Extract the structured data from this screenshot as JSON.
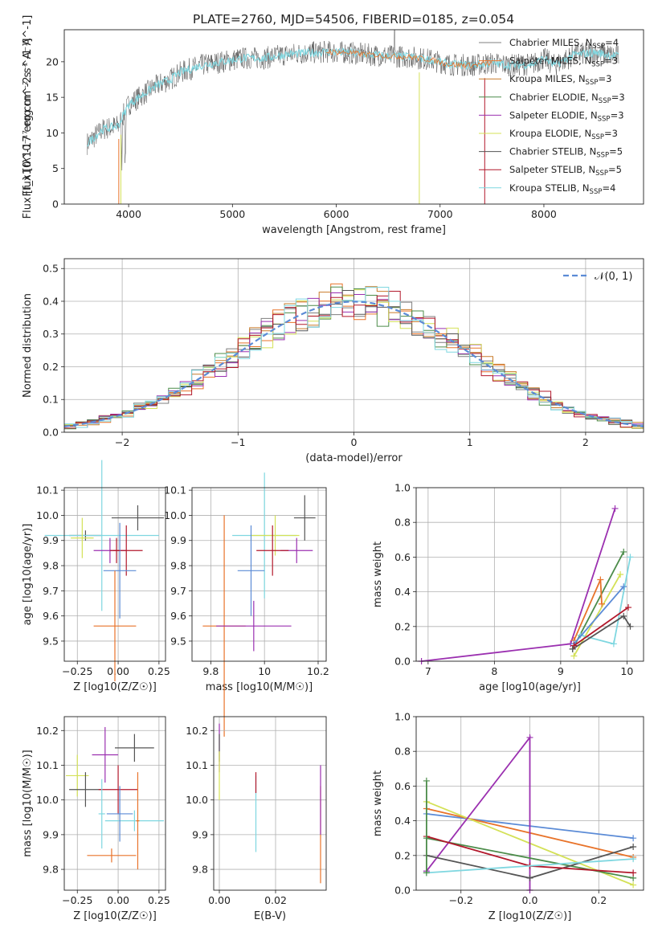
{
  "title": "PLATE=2760, MJD=54506, FIBERID=0185, z=0.054",
  "colors": {
    "c_miles": "#7f7f7f",
    "s_miles": "#e8732a",
    "k_miles": "#c97b2a",
    "c_elodie": "#4c8c4a",
    "s_elodie": "#9b30b0",
    "k_elodie": "#d4e157",
    "c_stelib": "#555555",
    "s_stelib": "#b2182b",
    "k_stelib": "#7fd7e0",
    "gauss": "#5b8bd6"
  },
  "legend_spectrum": [
    {
      "key": "c_miles",
      "text": "Chabrier MILES, N",
      "sub": "SSP",
      "tail": "=4"
    },
    {
      "key": "s_miles",
      "text": "Salpeter MILES, N",
      "sub": "SSP",
      "tail": "=3"
    },
    {
      "key": "k_miles",
      "text": "Kroupa MILES, N",
      "sub": "SSP",
      "tail": "=3"
    },
    {
      "key": "c_elodie",
      "text": "Chabrier ELODIE, N",
      "sub": "SSP",
      "tail": "=3"
    },
    {
      "key": "s_elodie",
      "text": "Salpeter ELODIE, N",
      "sub": "SSP",
      "tail": "=3"
    },
    {
      "key": "k_elodie",
      "text": "Kroupa ELODIE, N",
      "sub": "SSP",
      "tail": "=3"
    },
    {
      "key": "c_stelib",
      "text": "Chabrier STELIB, N",
      "sub": "SSP",
      "tail": "=5"
    },
    {
      "key": "s_stelib",
      "text": "Salpeter STELIB, N",
      "sub": "SSP",
      "tail": "=5"
    },
    {
      "key": "k_stelib",
      "text": "Kroupa STELIB, N",
      "sub": "SSP",
      "tail": "=4"
    }
  ],
  "legend_gauss": "𝒩(0, 1)",
  "chart_data": [
    {
      "type": "line",
      "xlabel": "wavelength [Angstrom, rest frame]",
      "ylabel": "Flux [f_λ10^-17 erg cm^-2 s^-1 A^-1]",
      "xlim": [
        3380,
        8960
      ],
      "ylim": [
        0,
        24.5
      ],
      "xticks": [
        4000,
        5000,
        6000,
        7000,
        8000
      ],
      "yticks": [
        0,
        5,
        10,
        15,
        20
      ],
      "continuum_x": [
        3600,
        3750,
        3900,
        4000,
        4100,
        4250,
        4400,
        4500,
        4700,
        4900,
        5100,
        5300,
        5500,
        5700,
        5900,
        6100,
        6300,
        6500,
        6700,
        6900,
        7100,
        7300,
        7500,
        7700,
        7900,
        8000,
        8100,
        8300,
        8500,
        8700
      ],
      "continuum_y": [
        8.5,
        10.5,
        11,
        14,
        15,
        16.5,
        17.5,
        18.5,
        19.5,
        20,
        20.5,
        20.5,
        21,
        21.2,
        21.4,
        21.3,
        21,
        20.8,
        20.7,
        20.3,
        19.6,
        19.5,
        19.8,
        19.5,
        19.7,
        20.5,
        19.5,
        21,
        21.3,
        20.8
      ]
    },
    {
      "type": "bar",
      "xlabel": "(data-model)/error",
      "ylabel": "Normed distribution",
      "xlim": [
        -2.5,
        2.5
      ],
      "ylim": [
        0,
        0.53
      ],
      "xticks": [
        -2,
        -1,
        0,
        1,
        2
      ],
      "yticks": [
        0,
        0.1,
        0.2,
        0.3,
        0.4,
        0.5
      ],
      "series_keys": [
        "c_miles",
        "s_miles",
        "k_miles",
        "c_elodie",
        "s_elodie",
        "k_elodie",
        "c_stelib",
        "s_stelib",
        "k_stelib"
      ]
    },
    {
      "type": "scatter",
      "xlabel": "Z [log10(Z/Z☉)]",
      "ylabel": "age  [log10(age/yr)]",
      "xlim": [
        -0.33,
        0.29
      ],
      "ylim": [
        9.42,
        10.11
      ],
      "xticks": [
        -0.25,
        0,
        0.25
      ],
      "xticklabels": [
        "−0.25",
        "0.00",
        "0.25"
      ],
      "yticks": [
        9.5,
        9.6,
        9.7,
        9.8,
        9.9,
        10.0,
        10.1
      ],
      "points": [
        {
          "k": "c_stelib",
          "x": 0.12,
          "y": 9.99,
          "xe": 0.16,
          "ye": 0.05
        },
        {
          "k": "c_stelib",
          "x": -0.2,
          "y": 9.92,
          "xe": 0.1,
          "ye": 0.02
        },
        {
          "k": "k_stelib",
          "x": -0.1,
          "y": 9.92,
          "xe": 0.35,
          "ye": 0.3
        },
        {
          "k": "k_elodie",
          "x": -0.22,
          "y": 9.91,
          "xe": 0.07,
          "ye": 0.08
        },
        {
          "k": "s_elodie",
          "x": -0.05,
          "y": 9.86,
          "xe": 0.1,
          "ye": 0.05
        },
        {
          "k": "s_stelib",
          "x": 0.05,
          "y": 9.86,
          "xe": 0.1,
          "ye": 0.1
        },
        {
          "k": "gauss",
          "x": 0.01,
          "y": 9.78,
          "xe": 0.1,
          "ye": 0.19
        },
        {
          "k": "s_miles",
          "x": -0.02,
          "y": 9.56,
          "xe": 0.13,
          "ye": 0.22
        },
        {
          "k": "s_stelib",
          "x": -0.01,
          "y": 9.86,
          "xe": 0.02,
          "ye": 0.05
        }
      ]
    },
    {
      "type": "scatter",
      "xlabel": "mass [log10(M/M☉)]",
      "ylabel": "",
      "xlim": [
        9.73,
        10.23
      ],
      "ylim": [
        9.42,
        10.11
      ],
      "xticks": [
        9.8,
        10.0,
        10.2
      ],
      "yticks": [
        9.5,
        9.6,
        9.7,
        9.8,
        9.9,
        10.0,
        10.1
      ],
      "points": [
        {
          "k": "c_stelib",
          "x": 10.15,
          "y": 9.99,
          "xe": 0.04,
          "ye": 0.09
        },
        {
          "k": "k_stelib",
          "x": 10.0,
          "y": 9.92,
          "xe": 0.12,
          "ye": 0.25
        },
        {
          "k": "k_elodie",
          "x": 10.04,
          "y": 9.92,
          "xe": 0.09,
          "ye": 0.08
        },
        {
          "k": "s_elodie",
          "x": 10.12,
          "y": 9.86,
          "xe": 0.06,
          "ye": 0.05
        },
        {
          "k": "s_stelib",
          "x": 10.03,
          "y": 9.86,
          "xe": 0.06,
          "ye": 0.1
        },
        {
          "k": "gauss",
          "x": 9.95,
          "y": 9.78,
          "xe": 0.05,
          "ye": 0.18
        },
        {
          "k": "s_miles",
          "x": 9.85,
          "y": 9.56,
          "xe": 0.08,
          "ye": 0.44
        },
        {
          "k": "s_elodie",
          "x": 9.96,
          "y": 9.56,
          "xe": 0.14,
          "ye": 0.1
        }
      ]
    },
    {
      "type": "line",
      "xlabel": "age  [log10(age/yr)]",
      "ylabel": "mass weight",
      "xlim": [
        6.82,
        10.25
      ],
      "ylim": [
        0,
        1.0
      ],
      "xticks": [
        7,
        8,
        9,
        10
      ],
      "yticks": [
        0,
        0.2,
        0.4,
        0.6,
        0.8,
        1.0
      ],
      "series": [
        {
          "k": "s_elodie",
          "x": [
            6.9,
            9.15,
            9.82
          ],
          "y": [
            0.0,
            0.1,
            0.88
          ]
        },
        {
          "k": "c_elodie",
          "x": [
            9.18,
            9.95
          ],
          "y": [
            0.07,
            0.63
          ]
        },
        {
          "k": "k_elodie",
          "x": [
            9.2,
            9.9
          ],
          "y": [
            0.03,
            0.5
          ]
        },
        {
          "k": "k_stelib",
          "x": [
            9.3,
            9.8,
            10.05
          ],
          "y": [
            0.15,
            0.1,
            0.6
          ]
        },
        {
          "k": "s_miles",
          "x": [
            9.2,
            9.6,
            9.62
          ],
          "y": [
            0.12,
            0.47,
            0.33
          ]
        },
        {
          "k": "gauss",
          "x": [
            9.2,
            9.95
          ],
          "y": [
            0.1,
            0.43
          ]
        },
        {
          "k": "c_stelib",
          "x": [
            9.18,
            9.95,
            10.05
          ],
          "y": [
            0.07,
            0.26,
            0.2
          ]
        },
        {
          "k": "s_stelib",
          "x": [
            9.2,
            10.02
          ],
          "y": [
            0.09,
            0.31
          ]
        }
      ]
    },
    {
      "type": "scatter",
      "xlabel": "Z [log10(Z/Z☉)]",
      "ylabel": "mass [log10(M/M☉)]",
      "xlim": [
        -0.33,
        0.29
      ],
      "ylim": [
        9.74,
        10.24
      ],
      "xticks": [
        -0.25,
        0,
        0.25
      ],
      "xticklabels": [
        "−0.25",
        "0.00",
        "0.25"
      ],
      "yticks": [
        9.8,
        9.9,
        10.0,
        10.1,
        10.2
      ],
      "points": [
        {
          "k": "c_stelib",
          "x": 0.1,
          "y": 10.15,
          "xe": 0.12,
          "ye": 0.04
        },
        {
          "k": "s_elodie",
          "x": -0.08,
          "y": 10.13,
          "xe": 0.08,
          "ye": 0.08
        },
        {
          "k": "k_elodie",
          "x": -0.25,
          "y": 10.07,
          "xe": 0.07,
          "ye": 0.06
        },
        {
          "k": "c_stelib",
          "x": -0.2,
          "y": 10.03,
          "xe": 0.1,
          "ye": 0.05
        },
        {
          "k": "s_stelib",
          "x": 0.0,
          "y": 10.03,
          "xe": 0.12,
          "ye": 0.07
        },
        {
          "k": "k_stelib",
          "x": 0.1,
          "y": 9.94,
          "xe": 0.18,
          "ye": 0.03
        },
        {
          "k": "gauss",
          "x": 0.01,
          "y": 9.96,
          "xe": 0.08,
          "ye": 0.08
        },
        {
          "k": "s_miles",
          "x": -0.04,
          "y": 9.84,
          "xe": 0.15,
          "ye": 0.02
        },
        {
          "k": "k_stelib",
          "x": -0.1,
          "y": 9.96,
          "xe": 0.02,
          "ye": 0.1
        },
        {
          "k": "s_miles",
          "x": 0.12,
          "y": 9.94,
          "xe": 0.01,
          "ye": 0.14
        }
      ]
    },
    {
      "type": "scatter",
      "xlabel": "E(B-V)",
      "ylabel": "",
      "xlim": [
        -0.002,
        0.038
      ],
      "ylim": [
        9.74,
        10.24
      ],
      "xticks": [
        0.0,
        0.02
      ],
      "xticklabels": [
        "0.00",
        "0.02"
      ],
      "yticks": [
        9.8,
        9.9,
        10.0,
        10.1,
        10.2
      ],
      "points": [
        {
          "k": "s_elodie",
          "x": 0.0,
          "y": 10.15,
          "xe": 0,
          "ye": 0.07
        },
        {
          "k": "c_stelib",
          "x": 0.0,
          "y": 10.15,
          "xe": 0,
          "ye": 0.04
        },
        {
          "k": "k_elodie",
          "x": 0.0,
          "y": 10.07,
          "xe": 0,
          "ye": 0.07
        },
        {
          "k": "k_stelib",
          "x": 0.013,
          "y": 9.96,
          "xe": 0,
          "ye": 0.11
        },
        {
          "k": "s_stelib",
          "x": 0.013,
          "y": 10.05,
          "xe": 0,
          "ye": 0.03
        },
        {
          "k": "s_miles",
          "x": 0.036,
          "y": 9.9,
          "xe": 0,
          "ye": 0.14
        },
        {
          "k": "s_elodie",
          "x": 0.036,
          "y": 10.0,
          "xe": 0,
          "ye": 0.1
        }
      ]
    },
    {
      "type": "line",
      "xlabel": "Z [log10(Z/Z☉)]",
      "ylabel": "mass weight",
      "xlim": [
        -0.33,
        0.33
      ],
      "ylim": [
        0,
        1.0
      ],
      "xticks": [
        -0.2,
        0.0,
        0.2
      ],
      "xticklabels": [
        "−0.2",
        "0.0",
        "0.2"
      ],
      "yticks": [
        0,
        0.2,
        0.4,
        0.6,
        0.8,
        1.0
      ],
      "series": [
        {
          "k": "gauss",
          "x": [
            -0.3,
            0.3
          ],
          "y": [
            0.44,
            0.3
          ]
        },
        {
          "k": "s_miles",
          "x": [
            -0.3,
            0.3
          ],
          "y": [
            0.47,
            0.19
          ]
        },
        {
          "k": "k_elodie",
          "x": [
            -0.3,
            0.3
          ],
          "y": [
            0.51,
            0.03
          ]
        },
        {
          "k": "s_elodie",
          "x": [
            -0.3,
            0.0,
            0.0
          ],
          "y": [
            0.11,
            0.88,
            0.0
          ]
        },
        {
          "k": "c_elodie",
          "x": [
            -0.3,
            0.3
          ],
          "y": [
            0.3,
            0.07
          ]
        },
        {
          "k": "c_stelib",
          "x": [
            -0.3,
            0.0,
            0.3
          ],
          "y": [
            0.2,
            0.07,
            0.25
          ]
        },
        {
          "k": "s_stelib",
          "x": [
            -0.3,
            0.0,
            0.3
          ],
          "y": [
            0.31,
            0.14,
            0.1
          ]
        },
        {
          "k": "k_stelib",
          "x": [
            -0.3,
            0.3
          ],
          "y": [
            0.1,
            0.18
          ]
        },
        {
          "k": "c_elodie",
          "x": [
            -0.3,
            -0.3
          ],
          "y": [
            0.1,
            0.63
          ]
        }
      ]
    }
  ]
}
